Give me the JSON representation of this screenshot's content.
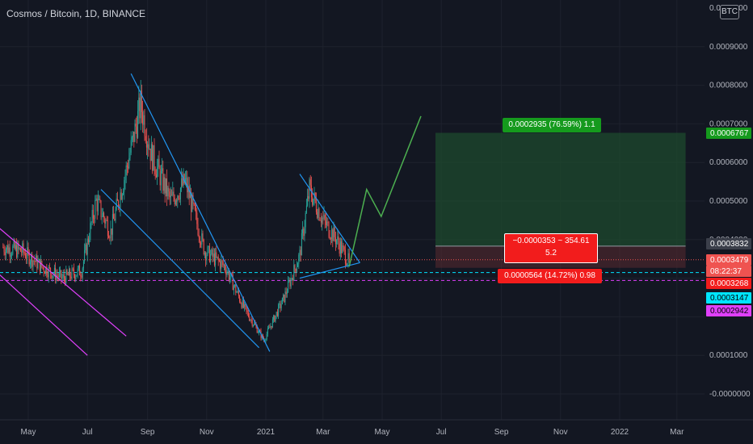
{
  "header": {
    "title": "Cosmos / Bitcoin, 1D, BINANCE",
    "currency_badge": "BTC"
  },
  "colors": {
    "background": "#131722",
    "grid": "#1e222d",
    "candle_up": "#26a69a",
    "candle_down": "#ef5350",
    "trendline": "#2196f3",
    "channel": "#e040fb",
    "projection": "#4caf50",
    "target_zone": "#1e4a2e",
    "stop_zone": "#5a2a30",
    "target_badge": "#159a1d",
    "stop_badge": "#f21c1c",
    "cyan_line": "#00e5ff",
    "magenta_line": "#e040fb"
  },
  "y_axis": {
    "ticks": [
      "0.0010000",
      "0.0009000",
      "0.0008000",
      "0.0007000",
      "0.0006000",
      "0.0005000",
      "0.0004000",
      "0.0001000",
      "-0.0000000"
    ],
    "price_badges": [
      {
        "text": "0.0006767",
        "bg": "#159a1d",
        "fg": "#ffffff"
      },
      {
        "text": "0.0003832",
        "bg": "#3b3f4a",
        "fg": "#ffffff"
      },
      {
        "text": "0.0003479",
        "bg": "#ef5350",
        "fg": "#ffffff"
      },
      {
        "text": "08:22:37",
        "bg": "#ef5350",
        "fg": "#ffffff"
      },
      {
        "text": "0.0003268",
        "bg": "#f21c1c",
        "fg": "#ffffff"
      },
      {
        "text": "0.0003147",
        "bg": "#00e5ff",
        "fg": "#000000"
      },
      {
        "text": "0.0002942",
        "bg": "#e040fb",
        "fg": "#000000"
      }
    ]
  },
  "x_axis": {
    "ticks": [
      "May",
      "Jul",
      "Sep",
      "Nov",
      "2021",
      "Mar",
      "May",
      "Jul",
      "Sep",
      "Nov",
      "2022",
      "Mar"
    ]
  },
  "position": {
    "target_label": "0.0002935 (76.59%) 1.1",
    "entry_label_line1": "−0.0000353 ~ 354.61",
    "entry_label_line2": "5.2",
    "stop_label": "0.0000564 (14.72%) 0.98"
  },
  "chart_data": {
    "type": "candlestick",
    "title": "Cosmos / Bitcoin, 1D, BINANCE",
    "symbol": "ATOM/BTC",
    "interval": "1D",
    "exchange": "BINANCE",
    "x_range": [
      "2020-04",
      "2022-03"
    ],
    "y_range": [
      -5e-05,
      0.001
    ],
    "price_path": [
      {
        "date": "2020-04-05",
        "price": 0.00038
      },
      {
        "date": "2020-04-25",
        "price": 0.00037
      },
      {
        "date": "2020-05-15",
        "price": 0.00033
      },
      {
        "date": "2020-06-05",
        "price": 0.0003
      },
      {
        "date": "2020-06-25",
        "price": 0.00032
      },
      {
        "date": "2020-07-10",
        "price": 0.0005
      },
      {
        "date": "2020-07-25",
        "price": 0.00042
      },
      {
        "date": "2020-08-10",
        "price": 0.00058
      },
      {
        "date": "2020-08-25",
        "price": 0.00075
      },
      {
        "date": "2020-09-05",
        "price": 0.00062
      },
      {
        "date": "2020-09-25",
        "price": 0.0005
      },
      {
        "date": "2020-10-10",
        "price": 0.00055
      },
      {
        "date": "2020-10-30",
        "price": 0.00037
      },
      {
        "date": "2020-11-20",
        "price": 0.00033
      },
      {
        "date": "2020-12-10",
        "price": 0.00022
      },
      {
        "date": "2020-12-30",
        "price": 0.00014
      },
      {
        "date": "2021-01-20",
        "price": 0.00025
      },
      {
        "date": "2021-02-05",
        "price": 0.00036
      },
      {
        "date": "2021-02-15",
        "price": 0.00053
      },
      {
        "date": "2021-03-01",
        "price": 0.00045
      },
      {
        "date": "2021-03-15",
        "price": 0.0004
      },
      {
        "date": "2021-03-28",
        "price": 0.00034
      }
    ],
    "projection": [
      {
        "date": "2021-03-28",
        "price": 0.00033
      },
      {
        "date": "2021-04-15",
        "price": 0.00053
      },
      {
        "date": "2021-04-30",
        "price": 0.00046
      },
      {
        "date": "2021-06-10",
        "price": 0.00072
      }
    ],
    "position": {
      "target": 0.0006767,
      "entry": 0.0003832,
      "stop": 0.0003268,
      "target_change": "0.0002935 (76.59%) 1.1",
      "stop_change": "0.0000564 (14.72%) 0.98",
      "start": "2021-06-25",
      "end": "2022-03-10"
    },
    "horizontal_lines": [
      {
        "price": 0.0003147,
        "style": "dashed",
        "color": "#00e5ff"
      },
      {
        "price": 0.0002942,
        "style": "dashed",
        "color": "#e040fb"
      },
      {
        "price": 0.0003479,
        "style": "dotted",
        "color": "#ef5350"
      }
    ],
    "trendlines": [
      {
        "from": [
          "2020-08-15",
          0.00083
        ],
        "to": [
          "2021-01-05",
          0.00011
        ],
        "color": "#2196f3"
      },
      {
        "from": [
          "2020-07-15",
          0.00053
        ],
        "to": [
          "2020-12-25",
          0.00012
        ],
        "color": "#2196f3"
      },
      {
        "from": [
          "2021-02-05",
          0.00057
        ],
        "to": [
          "2021-04-08",
          0.00034
        ],
        "color": "#2196f3"
      },
      {
        "from": [
          "2021-02-05",
          0.0003
        ],
        "to": [
          "2021-04-08",
          0.00034
        ],
        "color": "#2196f3"
      },
      {
        "from": [
          "2020-04-01",
          0.00043
        ],
        "to": [
          "2020-08-10",
          0.00015
        ],
        "color": "#e040fb"
      },
      {
        "from": [
          "2020-04-01",
          0.00031
        ],
        "to": [
          "2020-07-01",
          0.0001
        ],
        "color": "#e040fb"
      }
    ]
  }
}
